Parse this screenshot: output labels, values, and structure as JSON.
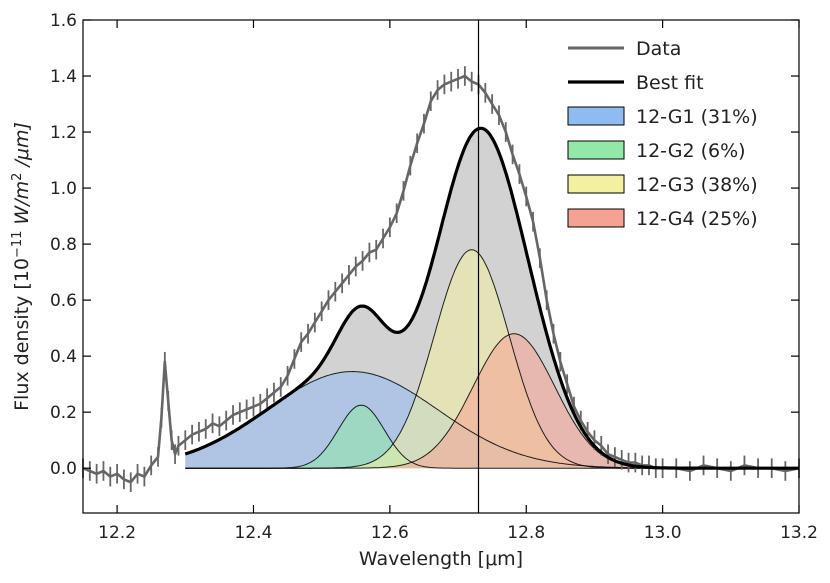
{
  "chart_data": {
    "type": "area",
    "xlabel": "Wavelength [μm]",
    "ylabel": "Flux density [10⁻¹¹ W/m² /μm]",
    "ylabel_parts": {
      "prefix": "Flux density [10",
      "exp": "−11",
      "unit": " W/m",
      "exp2": "2",
      "suffix": " /μm]"
    },
    "xlim": [
      12.15,
      13.2
    ],
    "ylim": [
      -0.16,
      1.6
    ],
    "xticks": [
      12.2,
      12.4,
      12.6,
      12.8,
      13.0,
      13.2
    ],
    "xtick_labels": [
      "12.2",
      "12.4",
      "12.6",
      "12.8",
      "13.0",
      "13.2"
    ],
    "yticks": [
      0.0,
      0.2,
      0.4,
      0.6,
      0.8,
      1.0,
      1.2,
      1.4,
      1.6
    ],
    "ytick_labels": [
      "0.0",
      "0.2",
      "0.4",
      "0.6",
      "0.8",
      "1.0",
      "1.2",
      "1.4",
      "1.6"
    ],
    "vertical_line_x": 12.73,
    "fit_range": [
      12.3,
      13.2
    ],
    "components": [
      {
        "name": "12-G1 (31%)",
        "center": 12.545,
        "amplitude": 0.345,
        "sigma": 0.125,
        "color": "#8fbcf0"
      },
      {
        "name": "12-G2 (6%)",
        "center": 12.558,
        "amplitude": 0.225,
        "sigma": 0.034,
        "color": "#93e8a8"
      },
      {
        "name": "12-G3 (38%)",
        "center": 12.72,
        "amplitude": 0.78,
        "sigma": 0.055,
        "color": "#f3f0a0"
      },
      {
        "name": "12-G4 (25%)",
        "center": 12.782,
        "amplitude": 0.48,
        "sigma": 0.06,
        "color": "#f6a292"
      }
    ],
    "series": [
      {
        "name": "Data",
        "color": "#666666",
        "x": [
          12.15,
          12.16,
          12.17,
          12.18,
          12.19,
          12.2,
          12.21,
          12.22,
          12.23,
          12.24,
          12.25,
          12.26,
          12.265,
          12.27,
          12.275,
          12.28,
          12.285,
          12.29,
          12.3,
          12.31,
          12.32,
          12.33,
          12.34,
          12.35,
          12.36,
          12.37,
          12.38,
          12.39,
          12.4,
          12.41,
          12.42,
          12.43,
          12.44,
          12.45,
          12.46,
          12.47,
          12.48,
          12.49,
          12.5,
          12.51,
          12.52,
          12.53,
          12.54,
          12.55,
          12.56,
          12.57,
          12.58,
          12.59,
          12.6,
          12.61,
          12.62,
          12.63,
          12.64,
          12.65,
          12.66,
          12.67,
          12.68,
          12.69,
          12.7,
          12.71,
          12.72,
          12.73,
          12.74,
          12.75,
          12.76,
          12.77,
          12.78,
          12.79,
          12.8,
          12.81,
          12.82,
          12.83,
          12.84,
          12.85,
          12.86,
          12.87,
          12.88,
          12.89,
          12.9,
          12.91,
          12.92,
          12.93,
          12.94,
          12.95,
          12.96,
          12.97,
          12.98,
          12.99,
          13.0,
          13.02,
          13.04,
          13.06,
          13.08,
          13.1,
          13.12,
          13.14,
          13.16,
          13.18,
          13.2
        ],
        "y": [
          -0.0,
          -0.01,
          -0.02,
          -0.01,
          -0.03,
          -0.02,
          -0.04,
          -0.05,
          -0.02,
          -0.03,
          0.01,
          0.04,
          0.18,
          0.38,
          0.24,
          0.1,
          0.05,
          0.08,
          0.1,
          0.12,
          0.13,
          0.14,
          0.16,
          0.15,
          0.17,
          0.19,
          0.2,
          0.21,
          0.22,
          0.23,
          0.25,
          0.27,
          0.29,
          0.33,
          0.39,
          0.45,
          0.48,
          0.52,
          0.56,
          0.6,
          0.63,
          0.66,
          0.69,
          0.72,
          0.74,
          0.77,
          0.78,
          0.82,
          0.86,
          0.91,
          0.99,
          1.08,
          1.16,
          1.23,
          1.31,
          1.35,
          1.37,
          1.38,
          1.39,
          1.4,
          1.38,
          1.37,
          1.34,
          1.3,
          1.26,
          1.2,
          1.12,
          1.05,
          0.97,
          0.88,
          0.75,
          0.6,
          0.48,
          0.38,
          0.3,
          0.22,
          0.17,
          0.13,
          0.1,
          0.08,
          0.05,
          0.04,
          0.03,
          0.02,
          0.02,
          0.01,
          0.01,
          0.0,
          0.0,
          0.0,
          -0.01,
          0.01,
          0.0,
          -0.01,
          0.01,
          0.0,
          0.0,
          -0.01,
          0.0
        ]
      },
      {
        "name": "Best fit",
        "color": "#000000"
      }
    ],
    "legend": [
      {
        "label": "Data",
        "kind": "line",
        "color": "#666666"
      },
      {
        "label": "Best fit",
        "kind": "line",
        "color": "#000000"
      },
      {
        "label": "12-G1 (31%)",
        "kind": "patch",
        "color": "#8fbcf0"
      },
      {
        "label": "12-G2 (6%)",
        "kind": "patch",
        "color": "#93e8a8"
      },
      {
        "label": "12-G3 (38%)",
        "kind": "patch",
        "color": "#f3f0a0"
      },
      {
        "label": "12-G4 (25%)",
        "kind": "patch",
        "color": "#f6a292"
      }
    ],
    "legend_position": "top-right",
    "grid": false
  }
}
